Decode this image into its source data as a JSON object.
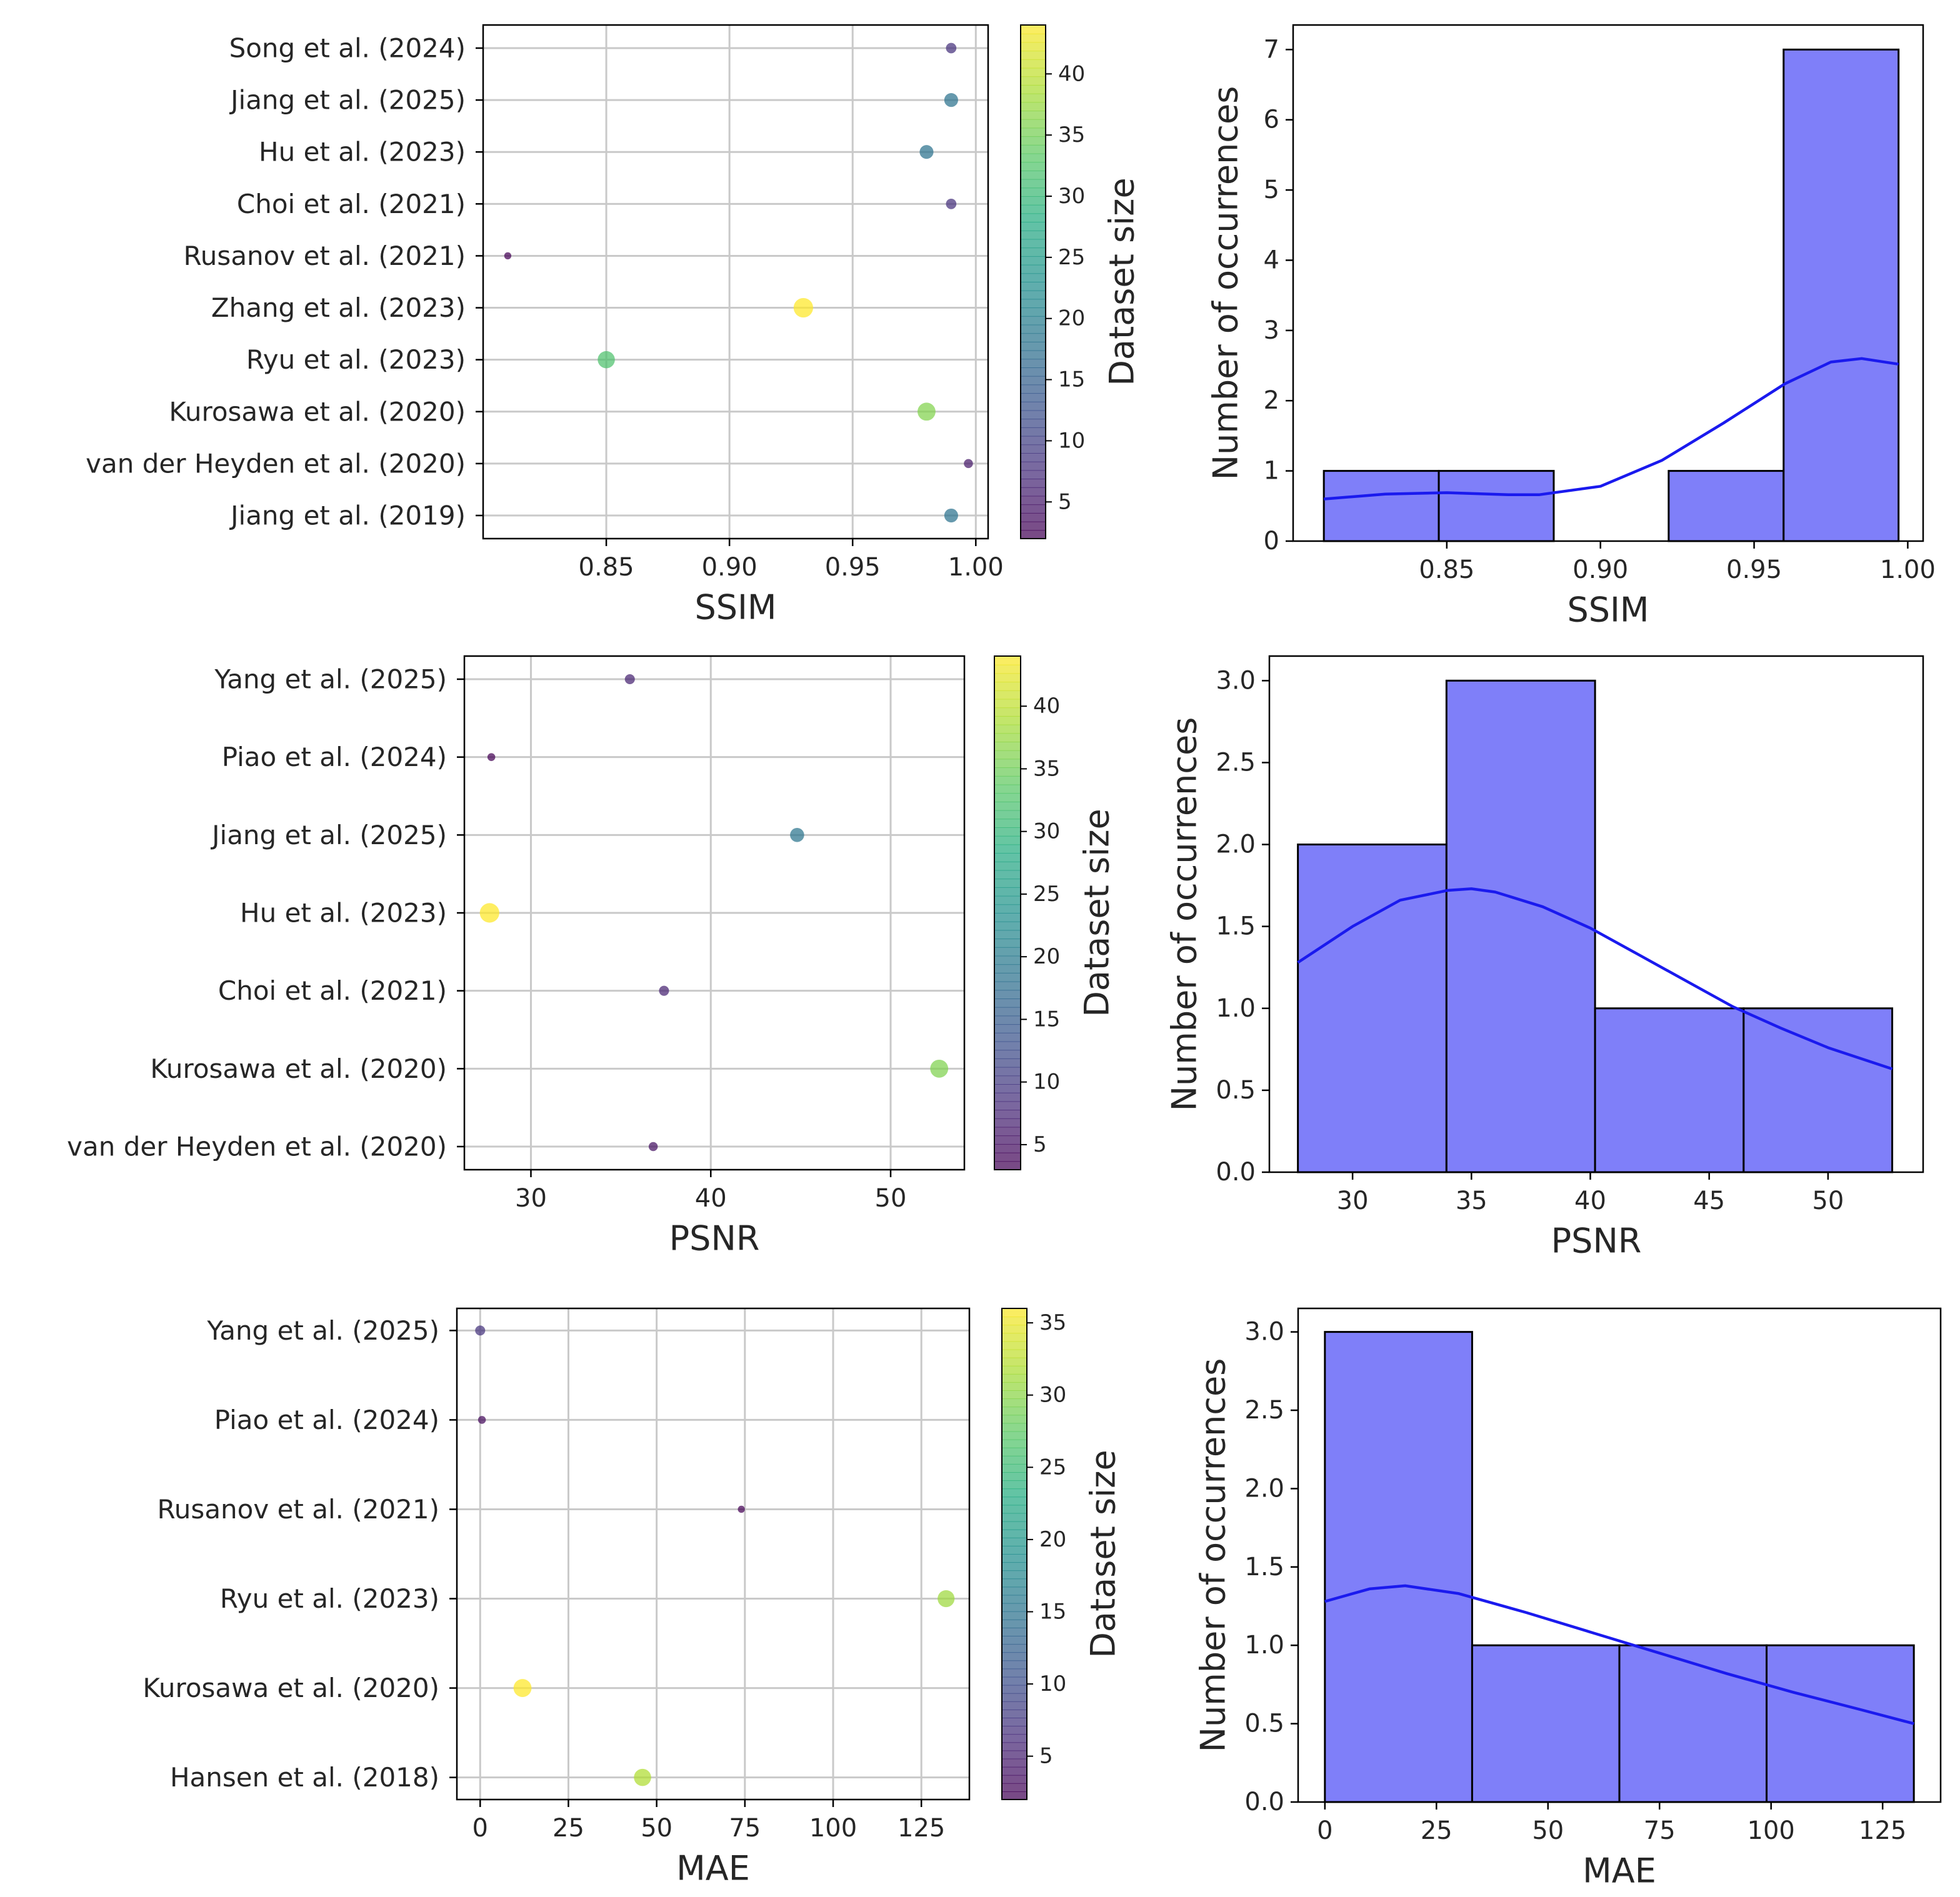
{
  "colors": {
    "bar_fill": "#7f7ff9",
    "bar_edge": "#000000",
    "kde_line": "#1a1aee",
    "grid": "#c9c9c9",
    "axes": "#000000",
    "colormap": [
      "#440154",
      "#472c7a",
      "#3b518b",
      "#2c718e",
      "#21908d",
      "#27ad81",
      "#5cc863",
      "#aadc32",
      "#fde725"
    ]
  },
  "chart_data": [
    {
      "type": "scatter",
      "xlabel": "SSIM",
      "colorbar_label": "Dataset size",
      "xlim": [
        0.8,
        1.005
      ],
      "xticks": [
        "0.85",
        "0.90",
        "0.95",
        "1.00"
      ],
      "grid": true,
      "colorbar": {
        "range": [
          2,
          44
        ],
        "ticks": [
          "5",
          "10",
          "15",
          "20",
          "25",
          "30",
          "35",
          "40"
        ]
      },
      "points": [
        {
          "label": "Song et al. (2024)",
          "value": 0.99,
          "size": 8
        },
        {
          "label": "Jiang et al. (2025)",
          "value": 0.99,
          "size": 18
        },
        {
          "label": "Hu et al. (2023)",
          "value": 0.98,
          "size": 18
        },
        {
          "label": "Choi et al. (2021)",
          "value": 0.99,
          "size": 8
        },
        {
          "label": "Rusanov et al. (2021)",
          "value": 0.81,
          "size": 2
        },
        {
          "label": "Zhang et al. (2023)",
          "value": 0.93,
          "size": 44
        },
        {
          "label": "Ryu et al. (2023)",
          "value": 0.85,
          "size": 32
        },
        {
          "label": "Kurosawa et al. (2020)",
          "value": 0.98,
          "size": 36
        },
        {
          "label": "van der Heyden et al. (2020)",
          "value": 0.997,
          "size": 5
        },
        {
          "label": "Jiang et al. (2019)",
          "value": 0.99,
          "size": 18
        }
      ]
    },
    {
      "type": "bar",
      "subtype": "histogram",
      "xlabel": "SSIM",
      "ylabel": "Number of occurrences",
      "xlim": [
        0.8,
        1.005
      ],
      "ylim": [
        0,
        7.35
      ],
      "xticks": [
        "0.85",
        "0.90",
        "0.95",
        "1.00"
      ],
      "yticks": [
        "0",
        "1",
        "2",
        "3",
        "4",
        "5",
        "6",
        "7"
      ],
      "bins": [
        {
          "x0": 0.81,
          "x1": 0.8474,
          "count": 1
        },
        {
          "x0": 0.8474,
          "x1": 0.8848,
          "count": 1
        },
        {
          "x0": 0.8848,
          "x1": 0.9222,
          "count": 0
        },
        {
          "x0": 0.9222,
          "x1": 0.9596,
          "count": 1
        },
        {
          "x0": 0.9596,
          "x1": 0.997,
          "count": 7
        }
      ],
      "kde": [
        [
          0.81,
          0.6
        ],
        [
          0.83,
          0.67
        ],
        [
          0.85,
          0.69
        ],
        [
          0.87,
          0.66
        ],
        [
          0.88,
          0.66
        ],
        [
          0.9,
          0.78
        ],
        [
          0.92,
          1.15
        ],
        [
          0.94,
          1.68
        ],
        [
          0.96,
          2.24
        ],
        [
          0.975,
          2.55
        ],
        [
          0.985,
          2.6
        ],
        [
          0.997,
          2.52
        ]
      ]
    },
    {
      "type": "scatter",
      "xlabel": "PSNR",
      "colorbar_label": "Dataset size",
      "xlim": [
        26.3,
        54.1
      ],
      "xticks": [
        "30",
        "40",
        "50"
      ],
      "grid": true,
      "colorbar": {
        "range": [
          3,
          44
        ],
        "ticks": [
          "5",
          "10",
          "15",
          "20",
          "25",
          "30",
          "35",
          "40"
        ]
      },
      "points": [
        {
          "label": "Yang et al. (2025)",
          "value": 35.5,
          "size": 7
        },
        {
          "label": "Piao et al. (2024)",
          "value": 27.8,
          "size": 3
        },
        {
          "label": "Jiang et al. (2025)",
          "value": 44.8,
          "size": 19
        },
        {
          "label": "Hu et al. (2023)",
          "value": 27.7,
          "size": 44
        },
        {
          "label": "Choi et al. (2021)",
          "value": 37.4,
          "size": 7
        },
        {
          "label": "Kurosawa et al. (2020)",
          "value": 52.7,
          "size": 36
        },
        {
          "label": "van der Heyden et al. (2020)",
          "value": 36.8,
          "size": 5
        }
      ]
    },
    {
      "type": "bar",
      "subtype": "histogram",
      "xlabel": "PSNR",
      "ylabel": "Number of occurrences",
      "xlim": [
        26.5,
        54.0
      ],
      "ylim": [
        0,
        3.15
      ],
      "xticks": [
        "30",
        "35",
        "40",
        "45",
        "50"
      ],
      "yticks": [
        "0.0",
        "0.5",
        "1.0",
        "1.5",
        "2.0",
        "2.5",
        "3.0"
      ],
      "bins": [
        {
          "x0": 27.7,
          "x1": 33.95,
          "count": 2
        },
        {
          "x0": 33.95,
          "x1": 40.2,
          "count": 3
        },
        {
          "x0": 40.2,
          "x1": 46.45,
          "count": 1
        },
        {
          "x0": 46.45,
          "x1": 52.7,
          "count": 1
        }
      ],
      "kde": [
        [
          27.7,
          1.28
        ],
        [
          30,
          1.5
        ],
        [
          32,
          1.66
        ],
        [
          34,
          1.72
        ],
        [
          35,
          1.73
        ],
        [
          36,
          1.71
        ],
        [
          38,
          1.62
        ],
        [
          40,
          1.49
        ],
        [
          42,
          1.33
        ],
        [
          44,
          1.17
        ],
        [
          46,
          1.01
        ],
        [
          48,
          0.88
        ],
        [
          50,
          0.76
        ],
        [
          52.7,
          0.63
        ]
      ]
    },
    {
      "type": "scatter",
      "xlabel": "MAE",
      "colorbar_label": "Dataset size",
      "xlim": [
        -6.6,
        138.6
      ],
      "xticks": [
        "0",
        "25",
        "50",
        "75",
        "100",
        "125"
      ],
      "grid": true,
      "colorbar": {
        "range": [
          2,
          36
        ],
        "ticks": [
          "5",
          "10",
          "15",
          "20",
          "25",
          "30",
          "35"
        ]
      },
      "points": [
        {
          "label": "Yang et al. (2025)",
          "value": 0,
          "size": 7
        },
        {
          "label": "Piao et al. (2024)",
          "value": 0.5,
          "size": 3
        },
        {
          "label": "Rusanov et al. (2021)",
          "value": 74,
          "size": 2
        },
        {
          "label": "Ryu et al. (2023)",
          "value": 132,
          "size": 31
        },
        {
          "label": "Kurosawa et al. (2020)",
          "value": 12,
          "size": 36
        },
        {
          "label": "Hansen et al. (2018)",
          "value": 46,
          "size": 32
        }
      ]
    },
    {
      "type": "bar",
      "subtype": "histogram",
      "xlabel": "MAE",
      "ylabel": "Number of occurrences",
      "xlim": [
        -6.0,
        138.0
      ],
      "ylim": [
        0,
        3.15
      ],
      "xticks": [
        "0",
        "25",
        "50",
        "75",
        "100",
        "125"
      ],
      "yticks": [
        "0.0",
        "0.5",
        "1.0",
        "1.5",
        "2.0",
        "2.5",
        "3.0"
      ],
      "bins": [
        {
          "x0": 0,
          "x1": 33,
          "count": 3
        },
        {
          "x0": 33,
          "x1": 66,
          "count": 1
        },
        {
          "x0": 66,
          "x1": 99,
          "count": 1
        },
        {
          "x0": 99,
          "x1": 132,
          "count": 1
        }
      ],
      "kde": [
        [
          0,
          1.28
        ],
        [
          10,
          1.36
        ],
        [
          18,
          1.38
        ],
        [
          30,
          1.33
        ],
        [
          45,
          1.21
        ],
        [
          60,
          1.08
        ],
        [
          75,
          0.95
        ],
        [
          90,
          0.82
        ],
        [
          105,
          0.7
        ],
        [
          120,
          0.59
        ],
        [
          132,
          0.5
        ]
      ]
    }
  ]
}
